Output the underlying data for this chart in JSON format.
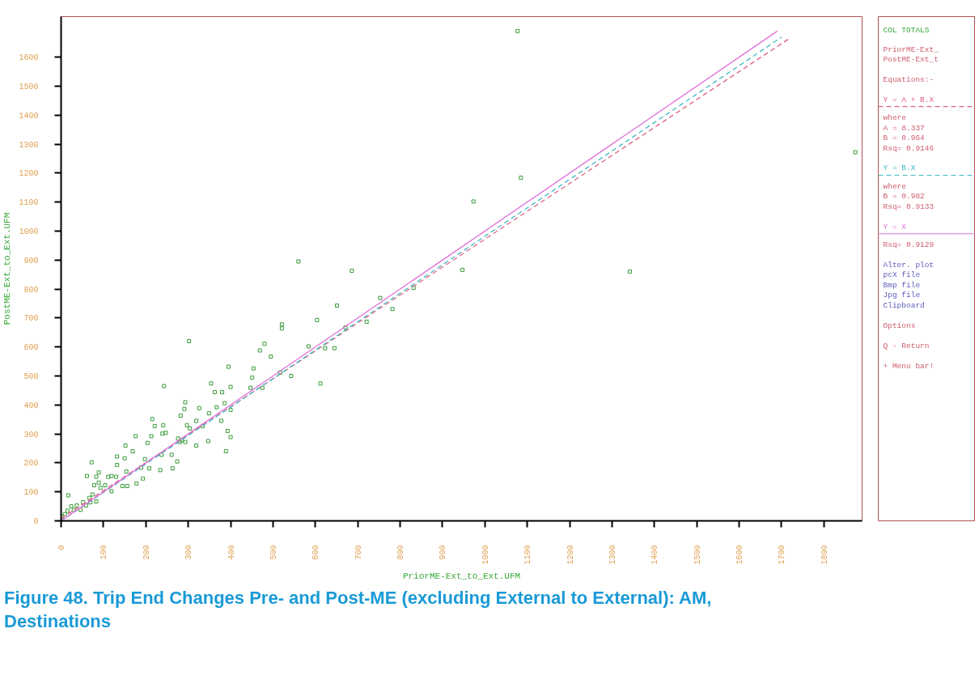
{
  "chart_data": {
    "type": "scatter",
    "title": "Figure 48.  Trip End Changes Pre- and Post-ME (excluding External to External): AM, Destinations",
    "xlabel": "PriorME-Ext_to_Ext.UFM",
    "ylabel": "PostME-Ext_to_Ext.UFM",
    "xlim": [
      0,
      1890
    ],
    "ylim": [
      0,
      1740
    ],
    "xticks": [
      0,
      100,
      200,
      300,
      400,
      500,
      600,
      700,
      800,
      900,
      1000,
      1100,
      1200,
      1300,
      1400,
      1500,
      1600,
      1700,
      1800
    ],
    "yticks": [
      0,
      100,
      200,
      300,
      400,
      500,
      600,
      700,
      800,
      900,
      1000,
      1100,
      1200,
      1300,
      1400,
      1500,
      1600
    ],
    "grid": false,
    "legend": "right",
    "annotations": [
      "COL TOTALS",
      "PriorME-Ext_",
      "PostME-Ext_t",
      "Equations:-",
      "where",
      " A =  8.337",
      " B =  0.964",
      "Rsq= 0.9146",
      "where",
      " B =  0.982",
      "Rsq= 0.9133",
      "Rsq= 0.9129",
      "Alter. plot",
      "pcX file",
      "Bmp file",
      "Jpg file",
      "Clipboard",
      "Options",
      "Q - Return",
      "+ Menu bar!"
    ],
    "series": [
      {
        "color": "#3a9a3a",
        "marker": "square",
        "x": [
          1077,
          1874,
          1085,
          973,
          1342,
          302,
          560,
          686,
          947,
          651,
          753,
          832,
          782,
          721,
          671,
          604,
          584,
          623,
          645,
          612,
          521,
          521,
          480,
          469,
          495,
          454,
          451,
          447,
          475,
          517,
          543,
          395,
          400,
          386,
          400,
          393,
          400,
          389,
          354,
          363,
          380,
          367,
          378,
          347,
          319,
          334,
          326,
          293,
          291,
          282,
          297,
          304,
          280,
          293,
          243,
          215,
          221,
          241,
          239,
          247,
          204,
          213,
          176,
          237,
          234,
          261,
          263,
          274,
          198,
          189,
          193,
          178,
          208,
          152,
          132,
          150,
          169,
          145,
          156,
          132,
          154,
          130,
          119,
          72,
          61,
          83,
          89,
          119,
          104,
          93,
          78,
          74,
          67,
          17,
          83,
          52,
          37,
          24,
          30,
          15,
          9,
          46,
          59,
          69,
          2,
          276,
          319,
          349,
          284,
          89,
          111
        ],
        "values": [
          1690,
          1272,
          1184,
          1102,
          860,
          620,
          895,
          863,
          866,
          743,
          769,
          804,
          731,
          687,
          667,
          693,
          602,
          596,
          596,
          474,
          678,
          664,
          611,
          588,
          567,
          526,
          494,
          459,
          459,
          512,
          500,
          532,
          462,
          406,
          383,
          310,
          289,
          240,
          474,
          444,
          444,
          392,
          345,
          275,
          260,
          327,
          389,
          409,
          386,
          363,
          330,
          319,
          272,
          272,
          465,
          351,
          327,
          330,
          301,
          304,
          269,
          292,
          292,
          228,
          175,
          228,
          181,
          205,
          213,
          184,
          146,
          129,
          181,
          260,
          222,
          216,
          240,
          120,
          120,
          193,
          170,
          152,
          155,
          202,
          155,
          152,
          167,
          102,
          123,
          114,
          123,
          91,
          79,
          88,
          67,
          64,
          53,
          50,
          38,
          35,
          23,
          38,
          53,
          64,
          15,
          284,
          345,
          371,
          278,
          132,
          152
        ]
      },
      {
        "type": "line",
        "name": "Y = A + B.X",
        "color": "#e06080",
        "line_style": "dashed",
        "x": [
          0,
          1720
        ],
        "values": [
          8,
          1666
        ]
      },
      {
        "type": "line",
        "name": "Y = B.X",
        "color": "#40b8c0",
        "line_style": "dashed",
        "x": [
          0,
          1700
        ],
        "values": [
          0,
          1669
        ]
      },
      {
        "type": "line",
        "name": "Y = X",
        "color": "#e070d8",
        "line_style": "solid",
        "x": [
          0,
          1690
        ],
        "values": [
          0,
          1690
        ]
      }
    ]
  }
}
